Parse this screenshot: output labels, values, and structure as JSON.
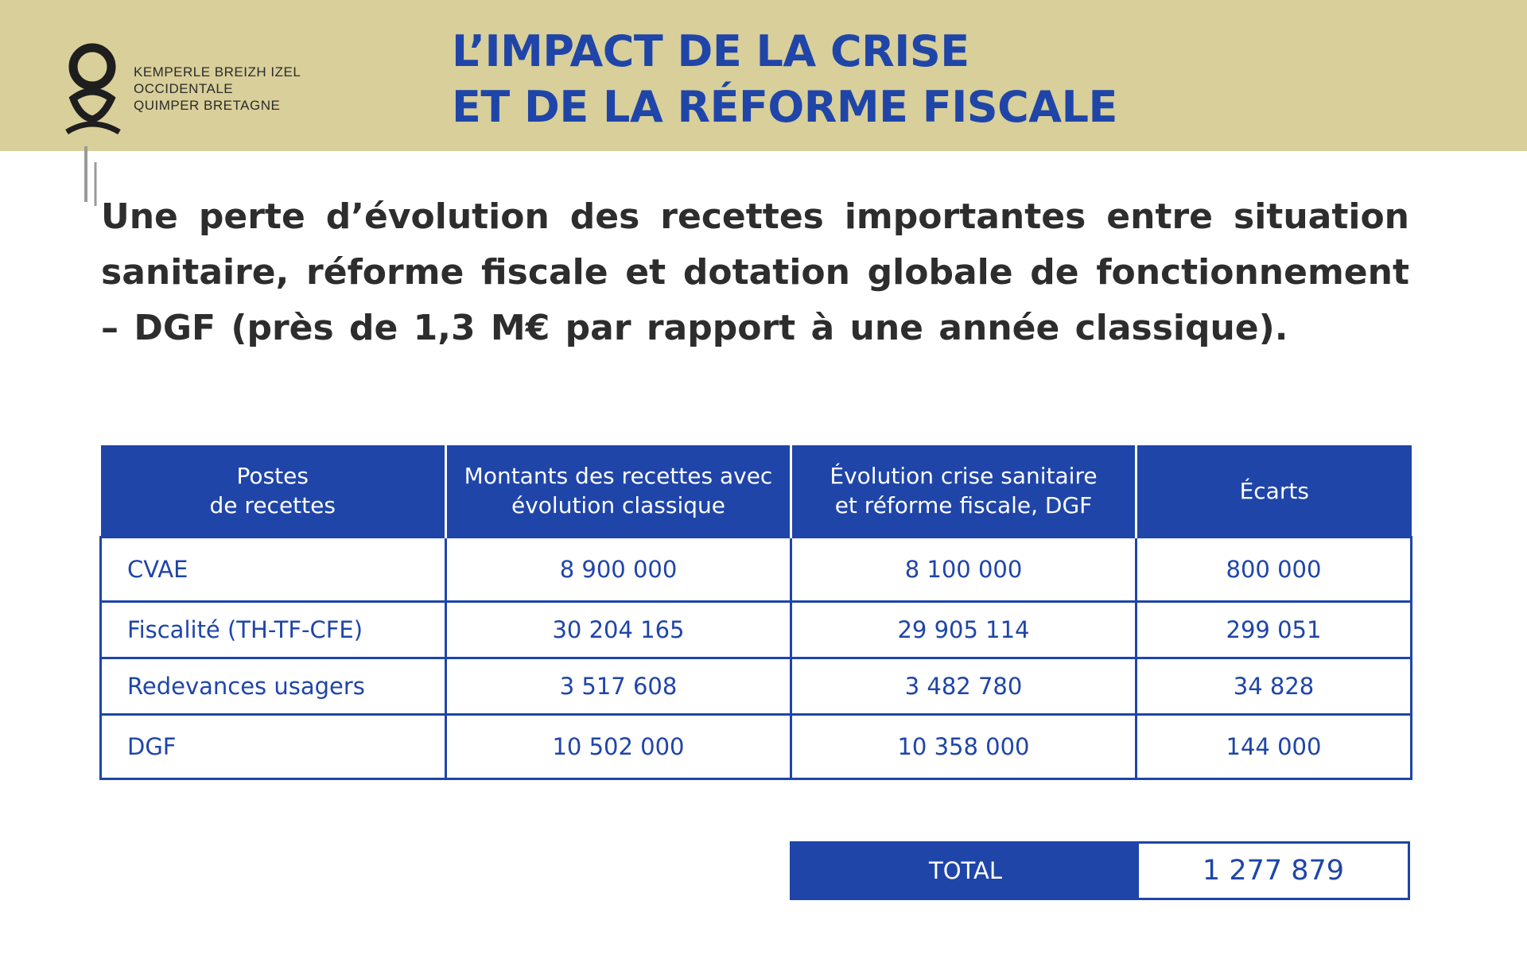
{
  "header": {
    "logo_text": [
      "KEMPERLE BREIZH IZEL",
      "OCCIDENTALE",
      "QUIMPER BRETAGNE"
    ],
    "title_lines": [
      "L’IMPACT DE LA CRISE",
      "ET DE LA RÉFORME FISCALE"
    ]
  },
  "intro": {
    "text": "Une perte d’évolution des recettes importantes entre situation sanitaire, réforme fiscale et dotation globale de fonctionnement – DGF (près de 1,3 M€ par rapport à une année classique)."
  },
  "table": {
    "headers": [
      "Postes\nde recettes",
      "Montants des recettes avec\névolution classique",
      "Évolution crise sanitaire\net réforme fiscale, DGF",
      "Écarts"
    ],
    "rows": [
      [
        "CVAE",
        "8 900 000",
        "8 100 000",
        "800 000"
      ],
      [
        "Fiscalité (TH-TF-CFE)",
        "30 204 165",
        "29 905 114",
        "299 051"
      ],
      [
        "Redevances usagers",
        "3 517 608",
        "3 482 780",
        "34 828"
      ],
      [
        "DGF",
        "10 502 000",
        "10 358 000",
        "144 000"
      ]
    ]
  },
  "total": {
    "label": "TOTAL",
    "value": "1 277 879"
  },
  "colors": {
    "band": "#d8cf9a",
    "accent_blue": "#1f45a9",
    "body_text": "#2d2d2d"
  }
}
